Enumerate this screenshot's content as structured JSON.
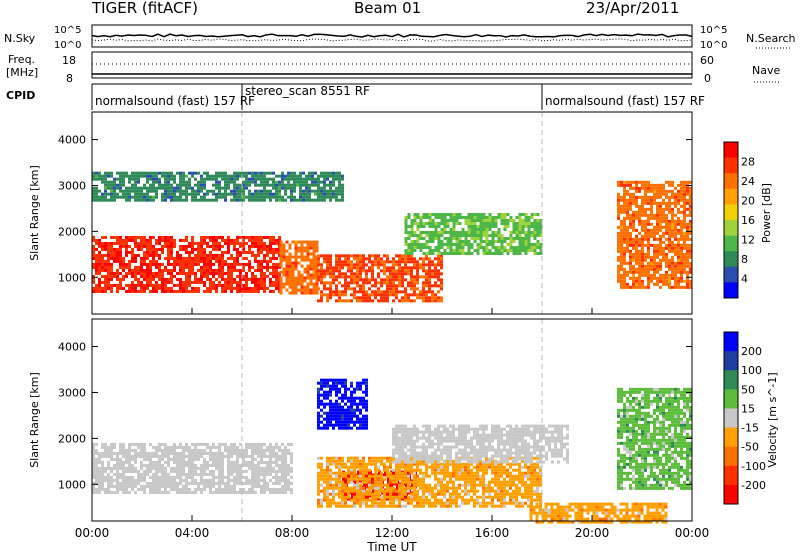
{
  "header": {
    "title": "TIGER (fitACF)",
    "beam": "Beam 01",
    "date": "23/Apr/2011"
  },
  "strip": {
    "nsky_label": "N.Sky",
    "nsky_ticks": [
      "10^5",
      "10^0"
    ],
    "nsearch_label": "N.Search",
    "nsearch_ticks": [
      "10^5",
      "10^0"
    ],
    "freq_label_1": "Freq.",
    "freq_label_2": "[MHz]",
    "freq_ticks": [
      "18",
      "8"
    ],
    "nave_label": "Nave",
    "nave_ticks": [
      "60",
      "0"
    ],
    "cpid_label": "CPID"
  },
  "cpid": [
    {
      "label": "normalsound (fast) 157 RF",
      "start_hour": 0
    },
    {
      "label": "stereo_scan 8551 RF",
      "start_hour": 6
    },
    {
      "label": "normalsound (fast) 157 RF",
      "start_hour": 18
    }
  ],
  "power_panel": {
    "ylabel": "Slant Range [km]",
    "yticks": [
      "1000",
      "2000",
      "3000",
      "4000"
    ],
    "colorbar_label": "Power [dB]",
    "colorbar_ticks": [
      "4",
      "8",
      "12",
      "16",
      "20",
      "24",
      "28"
    ],
    "colors": [
      "#0000ff",
      "#2a4fb0",
      "#2e8b57",
      "#4db848",
      "#a0d23c",
      "#f0d000",
      "#ffa000",
      "#ff7000",
      "#ff3000",
      "#ff0000"
    ]
  },
  "velocity_panel": {
    "ylabel": "Slant Range [km]",
    "yticks": [
      "1000",
      "2000",
      "3000",
      "4000"
    ],
    "colorbar_label": "Velocity [m s^-1]",
    "colorbar_ticks": [
      "200",
      "100",
      "50",
      "15",
      "-15",
      "-50",
      "-100",
      "-200"
    ],
    "colors": [
      "#0000ff",
      "#1d3fa0",
      "#2e8b57",
      "#5bbd3a",
      "#c8c8c8",
      "#ffa000",
      "#ff7000",
      "#ff3000",
      "#ff0000"
    ]
  },
  "xaxis": {
    "label": "Time UT",
    "ticks": [
      "00:00",
      "04:00",
      "08:00",
      "12:00",
      "16:00",
      "20:00",
      "00:00"
    ]
  },
  "chart_data": {
    "type": "heatmap",
    "x_unit": "hour UT",
    "xlim": [
      0,
      24
    ],
    "ylim_km": [
      200,
      4600
    ],
    "mode_boundaries_hours": [
      6,
      18
    ],
    "power_regions": [
      {
        "name": "main-band",
        "t": [
          0,
          7.5
        ],
        "range_km": [
          700,
          1900
        ],
        "power_dB": 28
      },
      {
        "name": "ramp",
        "t": [
          7.5,
          9
        ],
        "range_km": [
          650,
          1800
        ],
        "power_dB": 24
      },
      {
        "name": "mid-band",
        "t": [
          9,
          14
        ],
        "range_km": [
          500,
          1500
        ],
        "power_dB": 26
      },
      {
        "name": "upper-band",
        "t": [
          12.5,
          18
        ],
        "range_km": [
          1500,
          2400
        ],
        "power_dB": 12
      },
      {
        "name": "late-band",
        "t": [
          21,
          24
        ],
        "range_km": [
          800,
          3100
        ],
        "power_dB": 24
      },
      {
        "name": "far-range",
        "t": [
          0,
          10
        ],
        "range_km": [
          2700,
          3300
        ],
        "power_dB": 8
      }
    ],
    "velocity_regions": [
      {
        "name": "ground-scatter",
        "t": [
          0,
          8
        ],
        "range_km": [
          800,
          1900
        ],
        "velocity_ms": 0
      },
      {
        "name": "neg-band",
        "t": [
          10,
          13
        ],
        "range_km": [
          700,
          1300
        ],
        "velocity_ms": -200
      },
      {
        "name": "orange-band",
        "t": [
          9,
          18
        ],
        "range_km": [
          500,
          1600
        ],
        "velocity_ms": -50
      },
      {
        "name": "grey-upper",
        "t": [
          12,
          19
        ],
        "range_km": [
          1500,
          2300
        ],
        "velocity_ms": 0
      },
      {
        "name": "pos-band",
        "t": [
          9,
          11
        ],
        "range_km": [
          2200,
          3300
        ],
        "velocity_ms": 200
      },
      {
        "name": "late-green",
        "t": [
          21,
          24
        ],
        "range_km": [
          900,
          3100
        ],
        "velocity_ms": 50
      },
      {
        "name": "near-range-orange",
        "t": [
          17.5,
          23
        ],
        "range_km": [
          200,
          600
        ],
        "velocity_ms": -50
      }
    ]
  }
}
